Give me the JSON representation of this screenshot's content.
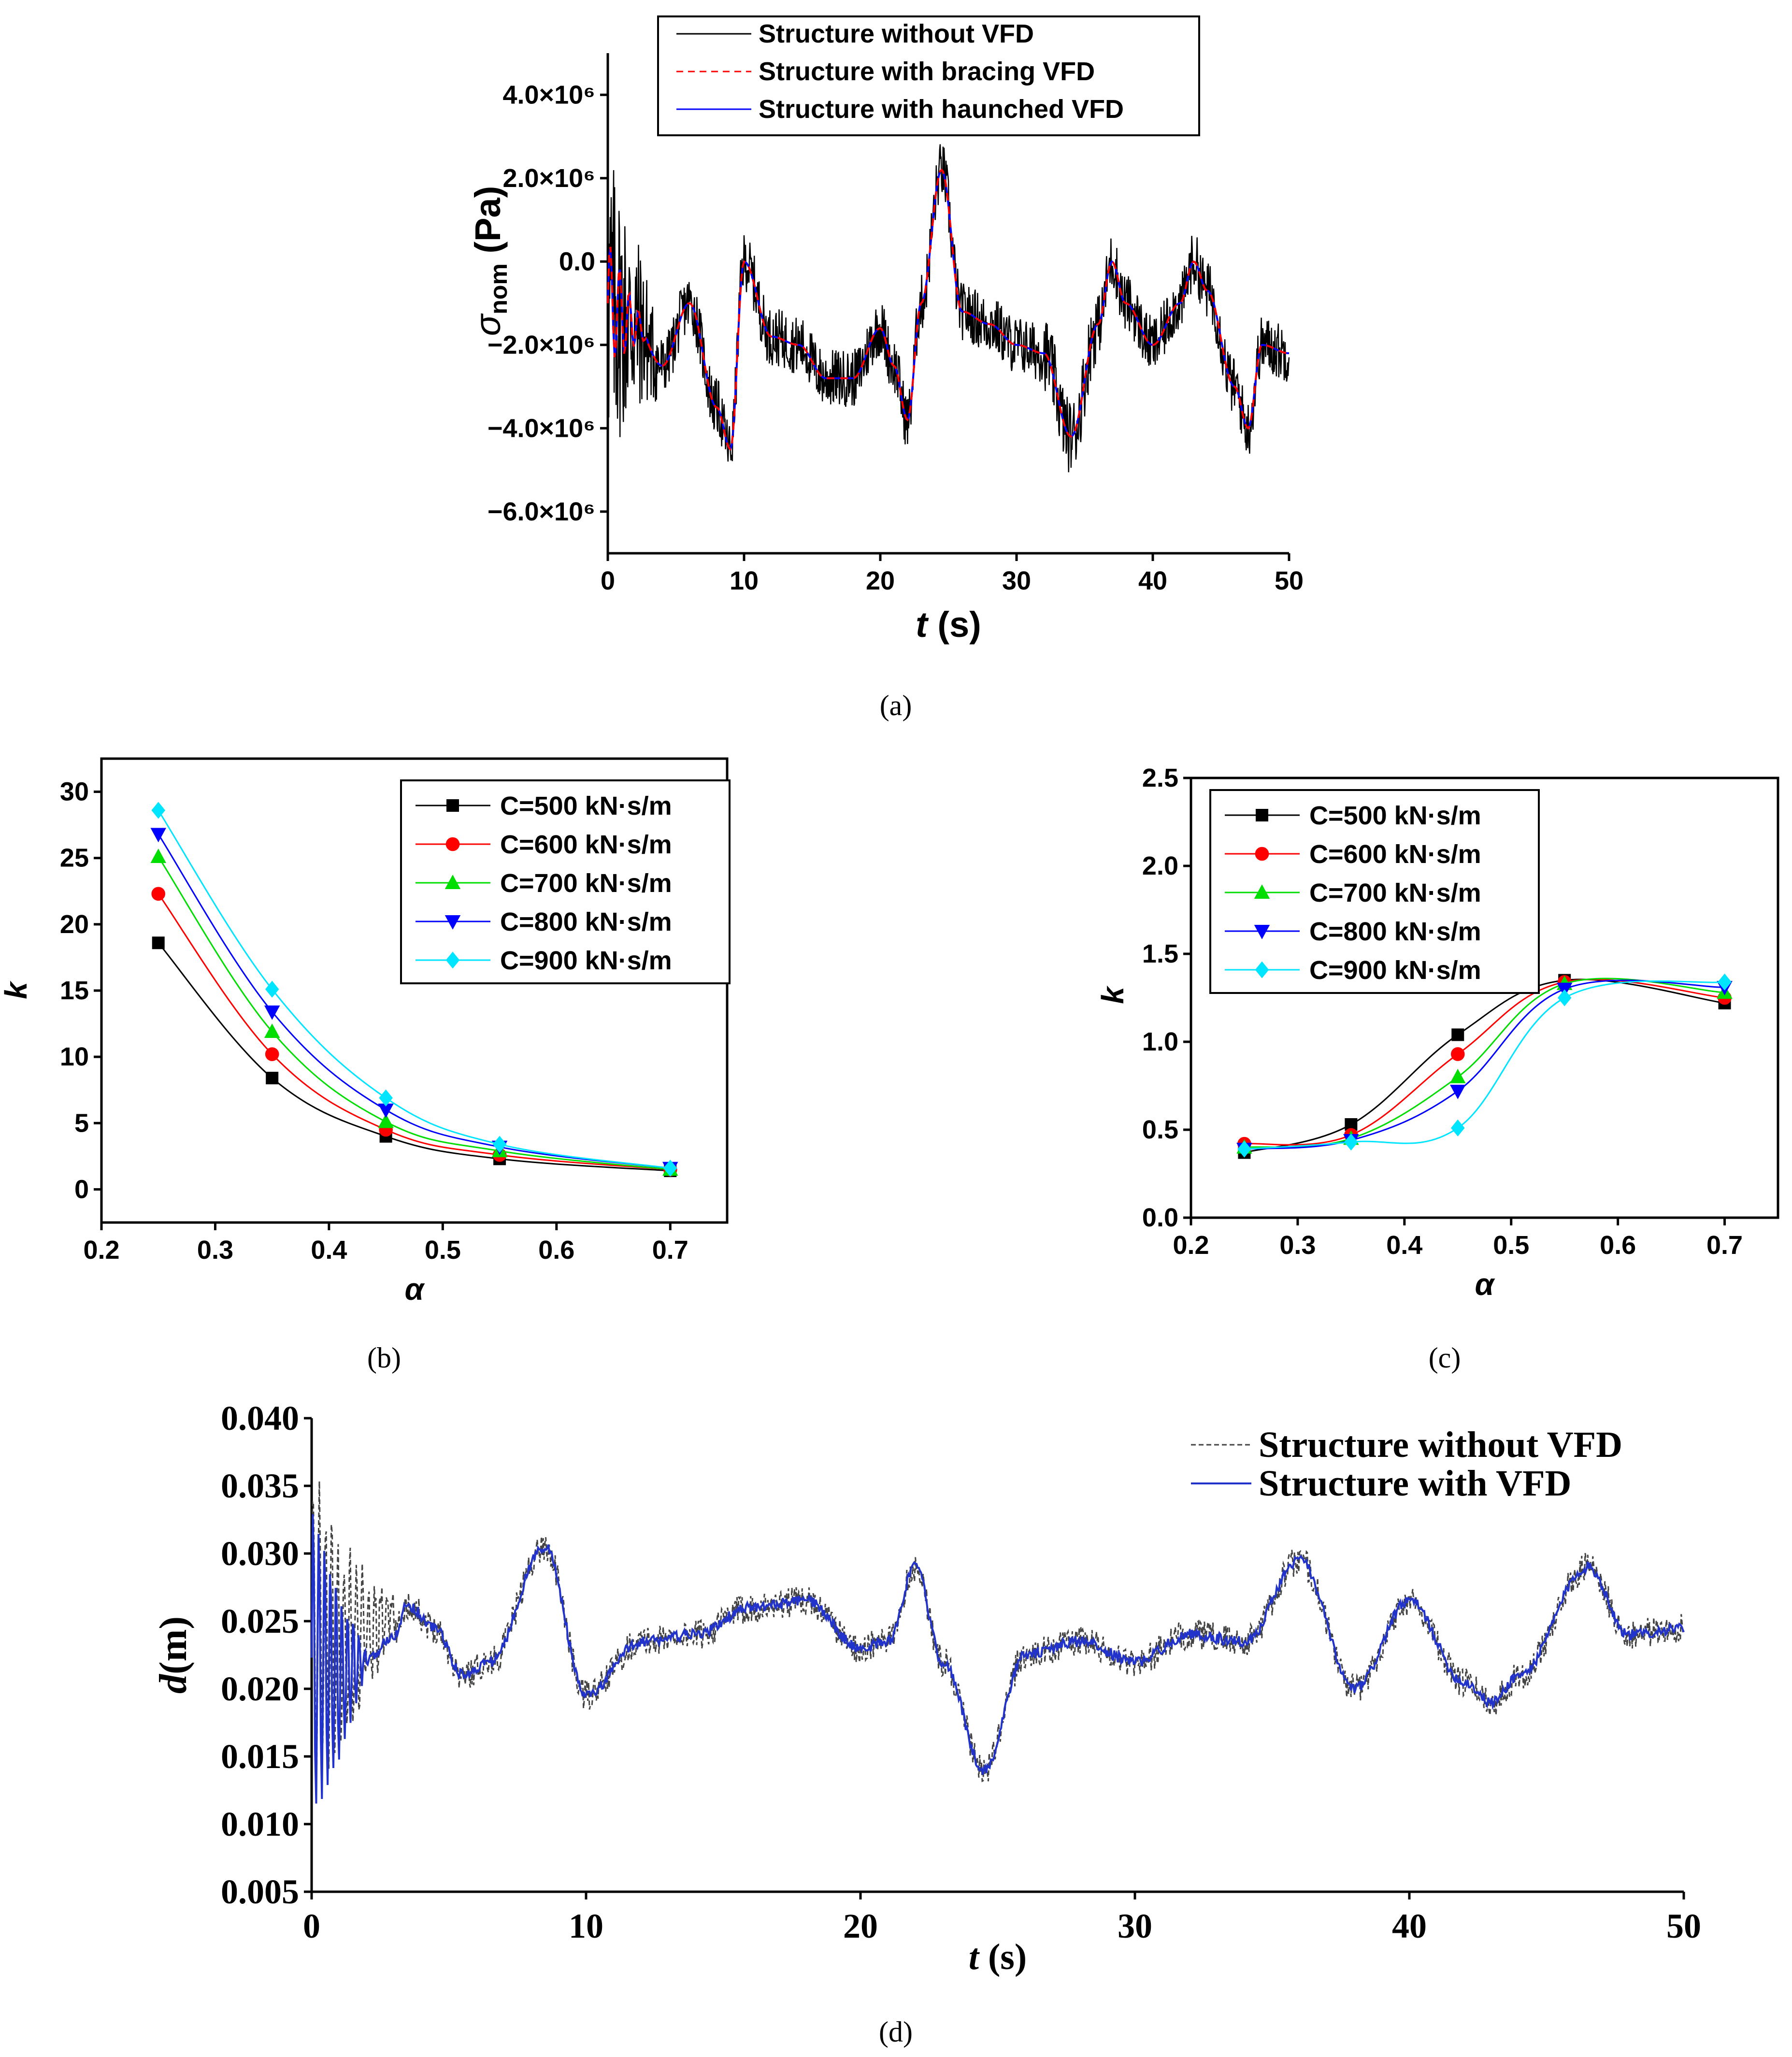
{
  "chart_data": [
    {
      "id": "a",
      "type": "line",
      "caption": "(a)",
      "xlabel_italic": "t",
      "xlabel_rest": " (s)",
      "ylabel_symbol": "σ",
      "ylabel_sub": "nom",
      "ylabel_unit": " (Pa)",
      "xlim": [
        0,
        50
      ],
      "ylim": [
        -7000000,
        5000000
      ],
      "xticks": [
        0,
        10,
        20,
        30,
        40,
        50
      ],
      "xtick_labels": [
        "0",
        "10",
        "20",
        "30",
        "40",
        "50"
      ],
      "yticks": [
        -6000000,
        -4000000,
        -2000000,
        0,
        2000000,
        4000000
      ],
      "ytick_labels": [
        "−6.0×10⁶",
        "−4.0×10⁶",
        "−2.0×10⁶",
        "0.0",
        "2.0×10⁶",
        "4.0×10⁶"
      ],
      "envelope_x": [
        0,
        2,
        4,
        6,
        8,
        9,
        10,
        12,
        14,
        16,
        18,
        20,
        21,
        22,
        23,
        24.5,
        26,
        28,
        30,
        32,
        34,
        36,
        37,
        38,
        40,
        42,
        43,
        44,
        46,
        47,
        48,
        50
      ],
      "envelope_y": [
        -1000000,
        -1500000,
        -2500000,
        -1000000,
        -3500000,
        -4500000,
        0,
        -1800000,
        -2000000,
        -2800000,
        -2800000,
        -1600000,
        -2500000,
        -3800000,
        -1000000,
        2200000,
        -1200000,
        -1500000,
        -2000000,
        -2200000,
        -4200000,
        -1500000,
        0,
        -1000000,
        -2000000,
        -1000000,
        0,
        -700000,
        -3000000,
        -4000000,
        -2000000,
        -2200000
      ],
      "series": [
        {
          "name": "Structure without VFD",
          "color": "#000000",
          "style": "solid"
        },
        {
          "name": "Structure with bracing VFD",
          "color": "#ff0000",
          "style": "dashed"
        },
        {
          "name": "Structure with haunched VFD",
          "color": "#0000ff",
          "style": "solid"
        }
      ]
    },
    {
      "id": "b",
      "type": "line",
      "caption": "(b)",
      "xlabel": "α",
      "ylabel": "k",
      "xlim": [
        0.2,
        0.75
      ],
      "ylim": [
        -2.5,
        32.5
      ],
      "xticks": [
        0.2,
        0.3,
        0.4,
        0.5,
        0.6,
        0.7
      ],
      "xtick_labels": [
        "0.2",
        "0.3",
        "0.4",
        "0.5",
        "0.6",
        "0.7"
      ],
      "yticks": [
        0,
        5,
        10,
        15,
        20,
        25,
        30
      ],
      "ytick_labels": [
        "0",
        "5",
        "10",
        "15",
        "20",
        "25",
        "30"
      ],
      "x": [
        0.25,
        0.35,
        0.45,
        0.55,
        0.7
      ],
      "series": [
        {
          "name": "C=500 kN·s/m",
          "color": "#000000",
          "marker": "square",
          "values": [
            18.6,
            8.4,
            4.0,
            2.3,
            1.4
          ]
        },
        {
          "name": "C=600 kN·s/m",
          "color": "#ff0000",
          "marker": "circle",
          "values": [
            22.3,
            10.2,
            4.5,
            2.6,
            1.5
          ]
        },
        {
          "name": "C=700 kN·s/m",
          "color": "#00dd00",
          "marker": "triangle-up",
          "values": [
            25.1,
            11.9,
            5.1,
            2.9,
            1.5
          ]
        },
        {
          "name": "C=800 kN·s/m",
          "color": "#0000ff",
          "marker": "triangle-down",
          "values": [
            26.8,
            13.4,
            6.0,
            3.2,
            1.6
          ]
        },
        {
          "name": "C=900 kN·s/m",
          "color": "#00e5ff",
          "marker": "diamond",
          "values": [
            28.6,
            15.1,
            6.9,
            3.4,
            1.6
          ]
        }
      ]
    },
    {
      "id": "c",
      "type": "line",
      "caption": "(c)",
      "xlabel": "α",
      "ylabel": "k",
      "xlim": [
        0.2,
        0.75
      ],
      "ylim": [
        0,
        2.5
      ],
      "xticks": [
        0.2,
        0.3,
        0.4,
        0.5,
        0.6,
        0.7
      ],
      "xtick_labels": [
        "0.2",
        "0.3",
        "0.4",
        "0.5",
        "0.6",
        "0.7"
      ],
      "yticks": [
        0,
        0.5,
        1.0,
        1.5,
        2.0,
        2.5
      ],
      "ytick_labels": [
        "0.0",
        "0.5",
        "1.0",
        "1.5",
        "2.0",
        "2.5"
      ],
      "x": [
        0.25,
        0.35,
        0.45,
        0.55,
        0.7
      ],
      "series": [
        {
          "name": "C=500 kN·s/m",
          "color": "#000000",
          "marker": "square",
          "values": [
            0.37,
            0.53,
            1.04,
            1.35,
            1.22
          ]
        },
        {
          "name": "C=600 kN·s/m",
          "color": "#ff0000",
          "marker": "circle",
          "values": [
            0.42,
            0.47,
            0.93,
            1.34,
            1.25
          ]
        },
        {
          "name": "C=700 kN·s/m",
          "color": "#00dd00",
          "marker": "triangle-up",
          "values": [
            0.4,
            0.45,
            0.8,
            1.33,
            1.28
          ]
        },
        {
          "name": "C=800 kN·s/m",
          "color": "#0000ff",
          "marker": "triangle-down",
          "values": [
            0.39,
            0.44,
            0.72,
            1.3,
            1.31
          ]
        },
        {
          "name": "C=900 kN·s/m",
          "color": "#00e5ff",
          "marker": "diamond",
          "values": [
            0.39,
            0.43,
            0.51,
            1.25,
            1.34
          ]
        }
      ]
    },
    {
      "id": "d",
      "type": "line",
      "caption": "(d)",
      "xlabel_italic": "t",
      "xlabel_rest": " (s)",
      "ylabel_italic": "d",
      "ylabel_rest": "(m)",
      "xlim": [
        0,
        50
      ],
      "ylim": [
        0.005,
        0.04
      ],
      "xticks": [
        0,
        10,
        20,
        30,
        40,
        50
      ],
      "xtick_labels": [
        "0",
        "10",
        "20",
        "30",
        "40",
        "50"
      ],
      "yticks": [
        0.005,
        0.01,
        0.015,
        0.02,
        0.025,
        0.03,
        0.035,
        0.04
      ],
      "ytick_labels": [
        "0.005",
        "0.010",
        "0.015",
        "0.020",
        "0.025",
        "0.030",
        "0.035",
        "0.040"
      ],
      "envelope_x": [
        0,
        1,
        2,
        3,
        3.5,
        4.5,
        5.5,
        6.5,
        8.5,
        10,
        12,
        14,
        16,
        18,
        20,
        21,
        22,
        23,
        24.5,
        26,
        28,
        30,
        32,
        34,
        36,
        38,
        40,
        42,
        43,
        44,
        46.5,
        48,
        50
      ],
      "envelope_y": [
        0.022,
        0.021,
        0.022,
        0.024,
        0.0262,
        0.0245,
        0.021,
        0.022,
        0.0305,
        0.0195,
        0.0235,
        0.024,
        0.026,
        0.0265,
        0.023,
        0.0235,
        0.029,
        0.022,
        0.014,
        0.0225,
        0.0235,
        0.022,
        0.024,
        0.0235,
        0.0295,
        0.02,
        0.0265,
        0.0205,
        0.019,
        0.021,
        0.029,
        0.024,
        0.0245
      ],
      "series": [
        {
          "name": "Structure without VFD",
          "color": "#444444",
          "style": "dashed"
        },
        {
          "name": "Structure with VFD",
          "color": "#2233cc",
          "style": "solid"
        }
      ]
    }
  ]
}
